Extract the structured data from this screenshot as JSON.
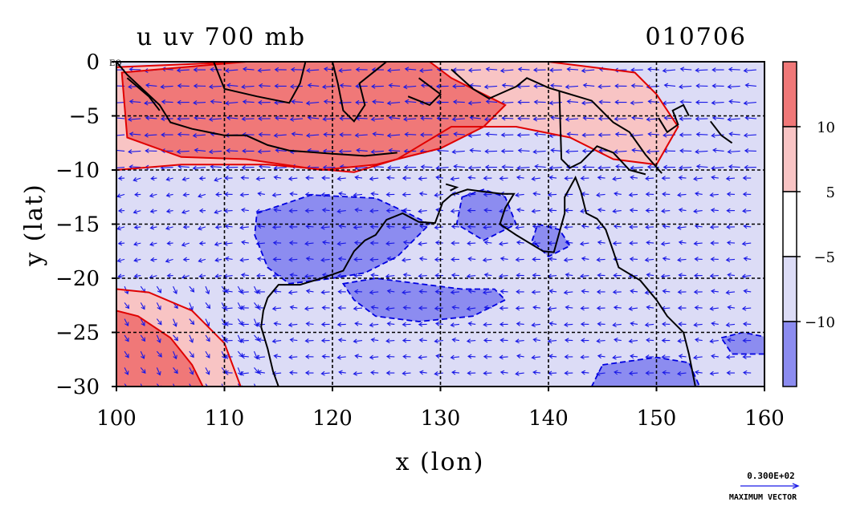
{
  "chart_data": {
    "type": "heatmap",
    "title_left": "u uv 700 mb",
    "title_right": "010706",
    "xlabel": "x (lon)",
    "ylabel": "y (lat)",
    "xlim": [
      100,
      160
    ],
    "ylim": [
      -30,
      0
    ],
    "x_ticks": [
      100,
      110,
      120,
      130,
      140,
      150,
      160
    ],
    "y_ticks": [
      0,
      -5,
      -10,
      -15,
      -20,
      -25,
      -30
    ],
    "x_tick_labels": [
      "100",
      "110",
      "120",
      "130",
      "140",
      "150",
      "160"
    ],
    "y_tick_labels": [
      "0",
      "−5",
      "−10",
      "−15",
      "−20",
      "−25",
      "−30"
    ],
    "eq_label": "EQ",
    "grid": true,
    "colorbar": {
      "boundaries": [
        10,
        5,
        -5,
        -10
      ],
      "labels": [
        "10",
        "5",
        "−5",
        "−10"
      ],
      "colors": [
        "#f07878",
        "#f8c4c4",
        "#ffffff",
        "#dcdcf6",
        "#8c8cf0"
      ],
      "placement": "right"
    },
    "vector_reference": {
      "value_label": "0.300E+02",
      "caption": "MAXIMUM VECTOR"
    },
    "colors": {
      "strong_positive": "#f07878",
      "weak_positive": "#f8c4c4",
      "weak_negative": "#dcdcf6",
      "strong_negative": "#8c8cf0",
      "positive_contour": "#e00000",
      "negative_contour": "#0000e0",
      "vectors": "#1a1ae6",
      "coastline": "#000000"
    },
    "regions": [
      {
        "level": "weak_positive",
        "lon_lat": [
          [
            100,
            -0.5
          ],
          [
            112,
            0
          ],
          [
            130,
            0
          ],
          [
            140,
            0
          ],
          [
            148,
            -1
          ],
          [
            150,
            -3
          ],
          [
            152,
            -6
          ],
          [
            150,
            -9.5
          ],
          [
            146,
            -9
          ],
          [
            142,
            -7
          ],
          [
            137,
            -6
          ],
          [
            131,
            -6
          ],
          [
            126,
            -9
          ],
          [
            122,
            -10.2
          ],
          [
            114,
            -9.5
          ],
          [
            106,
            -9.5
          ],
          [
            100,
            -10
          ]
        ]
      },
      {
        "level": "strong_positive",
        "lon_lat": [
          [
            100.5,
            -1
          ],
          [
            112,
            0
          ],
          [
            129,
            0
          ],
          [
            131,
            -1.5
          ],
          [
            134,
            -3
          ],
          [
            136,
            -4
          ],
          [
            134,
            -6
          ],
          [
            130,
            -8
          ],
          [
            124,
            -9.5
          ],
          [
            119,
            -10
          ],
          [
            112,
            -9
          ],
          [
            106,
            -8.8
          ],
          [
            101,
            -7
          ]
        ]
      },
      {
        "level": "weak_positive",
        "lon_lat": [
          [
            100,
            -21
          ],
          [
            103,
            -21.3
          ],
          [
            107,
            -23
          ],
          [
            110,
            -26
          ],
          [
            111.5,
            -30
          ],
          [
            100,
            -30
          ]
        ]
      },
      {
        "level": "strong_positive",
        "lon_lat": [
          [
            100,
            -23
          ],
          [
            102,
            -23.5
          ],
          [
            105,
            -25.5
          ],
          [
            107,
            -28
          ],
          [
            108,
            -30
          ],
          [
            100,
            -30
          ]
        ]
      },
      {
        "level": "strong_negative",
        "lon_lat": [
          [
            113,
            -14
          ],
          [
            118,
            -12.3
          ],
          [
            124,
            -12.6
          ],
          [
            127,
            -14
          ],
          [
            129,
            -15
          ],
          [
            126,
            -18
          ],
          [
            123,
            -19.5
          ],
          [
            120,
            -20
          ],
          [
            116,
            -20.5
          ],
          [
            114,
            -19
          ],
          [
            112.8,
            -16
          ]
        ]
      },
      {
        "level": "strong_negative",
        "lon_lat": [
          [
            121,
            -20.5
          ],
          [
            124,
            -20
          ],
          [
            128,
            -20.5
          ],
          [
            132,
            -21
          ],
          [
            135,
            -21
          ],
          [
            136,
            -22
          ],
          [
            133,
            -23.5
          ],
          [
            128,
            -24
          ],
          [
            124,
            -23.5
          ],
          [
            122,
            -22
          ]
        ]
      },
      {
        "level": "strong_negative",
        "lon_lat": [
          [
            132,
            -12.5
          ],
          [
            134,
            -11.8
          ],
          [
            136,
            -12.5
          ],
          [
            137,
            -15
          ],
          [
            134,
            -16.5
          ],
          [
            131.5,
            -15
          ]
        ]
      },
      {
        "level": "strong_negative",
        "lon_lat": [
          [
            139,
            -15
          ],
          [
            141,
            -15.5
          ],
          [
            142,
            -17
          ],
          [
            140,
            -18
          ],
          [
            138.5,
            -16.5
          ]
        ]
      },
      {
        "level": "strong_negative",
        "lon_lat": [
          [
            145,
            -28
          ],
          [
            150,
            -27.3
          ],
          [
            153,
            -27.8
          ],
          [
            154,
            -30
          ],
          [
            144,
            -30
          ]
        ]
      },
      {
        "level": "strong_negative",
        "lon_lat": [
          [
            156,
            -25.5
          ],
          [
            158,
            -25
          ],
          [
            160,
            -25.4
          ],
          [
            160,
            -27
          ],
          [
            157,
            -27
          ]
        ]
      }
    ],
    "coastlines": [
      [
        [
          100,
          0
        ],
        [
          101,
          -1.2
        ],
        [
          102.5,
          -2.6
        ],
        [
          104,
          -4
        ],
        [
          105,
          -5.6
        ],
        [
          107,
          -6.2
        ],
        [
          110,
          -6.8
        ],
        [
          112,
          -6.8
        ],
        [
          114,
          -7.7
        ],
        [
          116,
          -8.2
        ],
        [
          120,
          -8.5
        ],
        [
          123,
          -8.7
        ],
        [
          126,
          -8.4
        ]
      ],
      [
        [
          104,
          -4.5
        ],
        [
          103,
          -3.2
        ],
        [
          101,
          -1.5
        ]
      ],
      [
        [
          109,
          0
        ],
        [
          110,
          -2.5
        ],
        [
          113,
          -3.2
        ],
        [
          116,
          -3.8
        ],
        [
          117,
          -2
        ],
        [
          117.5,
          0
        ]
      ],
      [
        [
          120,
          0
        ],
        [
          120.5,
          -2
        ],
        [
          121,
          -4.5
        ],
        [
          122,
          -5.5
        ],
        [
          123,
          -4
        ],
        [
          122.5,
          -2
        ],
        [
          124,
          -0.8
        ],
        [
          125,
          0
        ]
      ],
      [
        [
          128,
          -1.5
        ],
        [
          130,
          -3
        ],
        [
          129,
          -4
        ],
        [
          127,
          -3.2
        ]
      ],
      [
        [
          131,
          -0.7
        ],
        [
          133,
          -2.5
        ],
        [
          134.5,
          -3.4
        ],
        [
          137,
          -2.3
        ],
        [
          138,
          -1.5
        ],
        [
          140,
          -2.4
        ],
        [
          141,
          -2.7
        ],
        [
          144,
          -3.6
        ],
        [
          146,
          -5.6
        ],
        [
          147.5,
          -6.5
        ],
        [
          149,
          -8.6
        ],
        [
          150.5,
          -10.3
        ]
      ],
      [
        [
          141,
          -2.7
        ],
        [
          141.2,
          -9
        ],
        [
          142,
          -9.8
        ],
        [
          143,
          -9.3
        ],
        [
          144.5,
          -7.8
        ],
        [
          146,
          -8.4
        ],
        [
          147.5,
          -10
        ],
        [
          149,
          -10.4
        ]
      ],
      [
        [
          150.2,
          -5.2
        ],
        [
          151,
          -6.5
        ],
        [
          152,
          -5.8
        ],
        [
          151.5,
          -4.5
        ],
        [
          152.5,
          -4
        ],
        [
          153,
          -5
        ]
      ],
      [
        [
          155,
          -5.5
        ],
        [
          156,
          -6.8
        ],
        [
          157,
          -7.5
        ]
      ],
      [
        [
          114,
          -21.8
        ],
        [
          115,
          -20.6
        ],
        [
          117,
          -20.6
        ],
        [
          119,
          -20
        ],
        [
          121,
          -19.3
        ],
        [
          122,
          -17.5
        ],
        [
          123,
          -16.5
        ],
        [
          124,
          -16
        ],
        [
          125,
          -14.6
        ],
        [
          126.5,
          -14
        ],
        [
          128,
          -14.8
        ],
        [
          129.5,
          -14.9
        ],
        [
          130.2,
          -13
        ],
        [
          131,
          -12.3
        ],
        [
          132.5,
          -11.8
        ],
        [
          134,
          -12
        ],
        [
          135.7,
          -12.2
        ],
        [
          136.8,
          -12.2
        ],
        [
          136,
          -13.5
        ],
        [
          135.5,
          -15
        ],
        [
          137,
          -16
        ],
        [
          139.5,
          -17.5
        ],
        [
          140.5,
          -17.6
        ],
        [
          141.5,
          -14
        ],
        [
          141.5,
          -12.5
        ],
        [
          142.5,
          -10.7
        ],
        [
          143,
          -12
        ],
        [
          143.5,
          -14
        ],
        [
          144.5,
          -14.5
        ],
        [
          145.3,
          -15.5
        ],
        [
          146,
          -17.5
        ],
        [
          146.5,
          -19
        ],
        [
          148.5,
          -20.2
        ],
        [
          150,
          -22
        ],
        [
          151,
          -23.5
        ],
        [
          152.5,
          -25
        ],
        [
          153,
          -27
        ],
        [
          153.6,
          -30
        ]
      ],
      [
        [
          114,
          -21.8
        ],
        [
          113.6,
          -23
        ],
        [
          113.4,
          -24.5
        ],
        [
          114,
          -26.5
        ],
        [
          114.5,
          -28.6
        ],
        [
          115,
          -30
        ]
      ],
      [
        [
          130.5,
          -11.3
        ],
        [
          131.5,
          -11.6
        ],
        [
          130.9,
          -11.9
        ]
      ]
    ],
    "wind_vectors": [
      {
        "lon_range": [
          100,
          160
        ],
        "lat_range": [
          -10,
          0
        ],
        "u": -9,
        "v": 0
      },
      {
        "lon_range": [
          100,
          110
        ],
        "lat_range": [
          -20,
          -10
        ],
        "u": -5,
        "v": -1
      },
      {
        "lon_range": [
          110,
          160
        ],
        "lat_range": [
          -30,
          -10
        ],
        "u": -6,
        "v": 0
      },
      {
        "lon_range": [
          100,
          113
        ],
        "lat_range": [
          -30,
          -20
        ],
        "u": 3,
        "v": -5
      }
    ]
  }
}
